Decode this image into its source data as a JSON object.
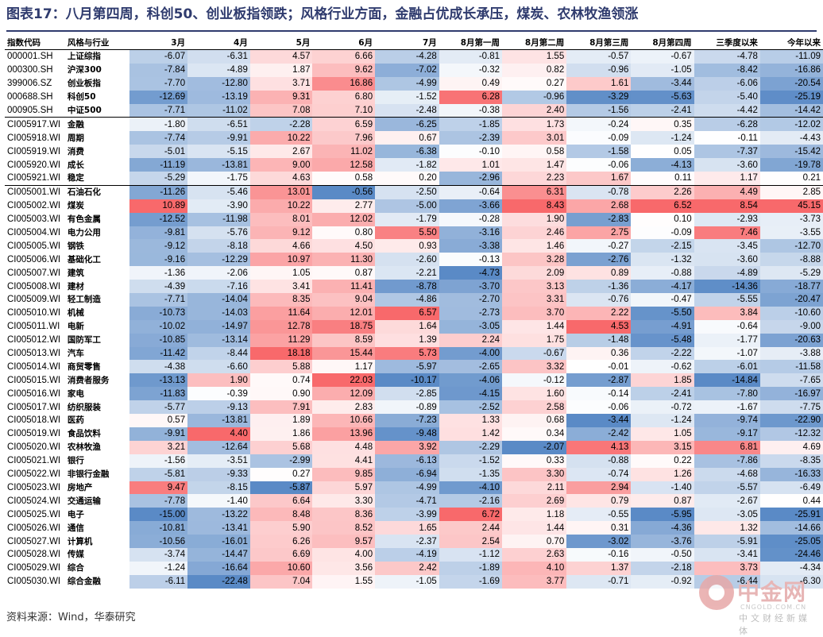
{
  "title": "图表17：八月第四周，科创50、创业板指领跌；风格行业方面，金融占优成长承压，煤炭、农林牧渔领涨",
  "source": "资料来源：Wind，华泰研究",
  "watermark": {
    "main": "中金网",
    "sub": "CNGOLD.COM.CN",
    "tag": "中文财经新媒体"
  },
  "table": {
    "headers": [
      "指数代码",
      "风格与行业",
      "3月",
      "4月",
      "5月",
      "6月",
      "7月",
      "8月第一周",
      "8月第二周",
      "8月第三周",
      "8月第四周",
      "三季度以来",
      "今年以来"
    ],
    "separator_after_rows": [
      4,
      9
    ],
    "rows": [
      [
        "000001.SH",
        "上证综指",
        -6.07,
        -6.31,
        4.57,
        6.66,
        -4.28,
        -0.81,
        1.55,
        -0.57,
        -0.67,
        -4.78,
        -11.09
      ],
      [
        "000300.SH",
        "沪深300",
        -7.84,
        -4.89,
        1.87,
        9.62,
        -7.02,
        -0.32,
        0.82,
        -0.96,
        -1.05,
        -8.42,
        -16.86
      ],
      [
        "399006.SZ",
        "创业板指",
        -7.7,
        -12.8,
        3.71,
        16.86,
        -4.99,
        0.49,
        0.27,
        1.61,
        -3.44,
        -6.06,
        -20.54
      ],
      [
        "000688.SH",
        "科创50",
        -12.69,
        -13.19,
        9.31,
        6.8,
        -1.52,
        6.28,
        -0.96,
        -3.29,
        -5.63,
        -5.4,
        -25.19
      ],
      [
        "000905.SH",
        "中证500",
        -7.71,
        -11.02,
        7.08,
        7.1,
        -2.48,
        -0.38,
        2.4,
        -1.56,
        -2.41,
        -4.42,
        -14.42
      ],
      [
        "CI005917.WI",
        "金融",
        -1.8,
        -6.51,
        -2.28,
        6.59,
        -6.25,
        -1.85,
        1.73,
        -0.24,
        0.35,
        -6.28,
        -12.02
      ],
      [
        "CI005918.WI",
        "周期",
        -7.74,
        -9.91,
        10.22,
        7.96,
        0.67,
        -2.39,
        3.01,
        -0.09,
        -1.24,
        -0.11,
        -4.43
      ],
      [
        "CI005919.WI",
        "消费",
        -5.01,
        -5.15,
        2.67,
        11.02,
        -6.38,
        -0.1,
        0.58,
        -1.58,
        0.05,
        -7.37,
        -15.42
      ],
      [
        "CI005920.WI",
        "成长",
        -11.19,
        -13.81,
        9.0,
        12.58,
        -1.82,
        1.01,
        1.47,
        -0.06,
        -4.13,
        -3.6,
        -19.78
      ],
      [
        "CI005921.WI",
        "稳定",
        -5.29,
        -1.75,
        4.63,
        0.58,
        0.2,
        -2.96,
        2.23,
        1.67,
        0.11,
        1.17,
        0.21
      ],
      [
        "CI005001.WI",
        "石油石化",
        -11.26,
        -5.46,
        13.01,
        -0.56,
        -2.5,
        -0.64,
        6.31,
        -0.78,
        2.26,
        4.49,
        2.85
      ],
      [
        "CI005002.WI",
        "煤炭",
        10.89,
        -3.9,
        10.22,
        2.77,
        -5.0,
        -3.66,
        8.43,
        2.68,
        6.52,
        8.54,
        45.15
      ],
      [
        "CI005003.WI",
        "有色金属",
        -12.52,
        -11.98,
        8.01,
        12.02,
        -1.79,
        -0.28,
        1.9,
        -2.83,
        0.1,
        -2.93,
        -3.73
      ],
      [
        "CI005004.WI",
        "电力公用",
        -9.81,
        -5.76,
        9.12,
        0.8,
        5.5,
        -3.16,
        2.46,
        2.75,
        -0.09,
        7.46,
        -3.55
      ],
      [
        "CI005005.WI",
        "钢铁",
        -9.12,
        -8.18,
        4.66,
        4.5,
        0.93,
        -3.38,
        1.46,
        -0.27,
        -2.15,
        -3.45,
        -12.7
      ],
      [
        "CI005006.WI",
        "基础化工",
        -9.16,
        -12.29,
        10.97,
        11.3,
        -2.6,
        -0.13,
        3.28,
        -2.76,
        -1.32,
        -3.6,
        -8.88
      ],
      [
        "CI005007.WI",
        "建筑",
        -1.36,
        -2.06,
        1.05,
        0.87,
        -2.21,
        -4.73,
        2.09,
        0.89,
        -0.88,
        -4.89,
        -5.29
      ],
      [
        "CI005008.WI",
        "建材",
        -4.39,
        -7.16,
        3.41,
        11.41,
        -8.78,
        -3.7,
        3.13,
        -1.36,
        -4.17,
        -14.36,
        -18.77
      ],
      [
        "CI005009.WI",
        "轻工制造",
        -7.71,
        -14.04,
        8.35,
        9.04,
        -4.86,
        -2.7,
        3.31,
        -0.76,
        -0.47,
        -5.55,
        -20.47
      ],
      [
        "CI005010.WI",
        "机械",
        -10.73,
        -14.03,
        11.64,
        12.01,
        6.57,
        -2.73,
        3.7,
        2.22,
        -5.5,
        3.84,
        -10.6
      ],
      [
        "CI005011.WI",
        "电新",
        -10.02,
        -14.97,
        12.78,
        18.75,
        1.64,
        -3.05,
        1.44,
        4.53,
        -4.91,
        -0.64,
        -9.0
      ],
      [
        "CI005012.WI",
        "国防军工",
        -10.85,
        -13.14,
        11.29,
        8.59,
        1.39,
        2.24,
        1.75,
        -1.48,
        -5.48,
        -1.77,
        -20.63
      ],
      [
        "CI005013.WI",
        "汽车",
        -11.42,
        -8.44,
        18.18,
        15.44,
        5.73,
        -4.0,
        -0.67,
        0.36,
        -2.22,
        -1.07,
        -3.88
      ],
      [
        "CI005014.WI",
        "商贸零售",
        -4.38,
        -6.6,
        5.88,
        1.17,
        -5.97,
        -2.65,
        3.32,
        -0.01,
        -0.62,
        -6.01,
        -11.58
      ],
      [
        "CI005015.WI",
        "消费者服务",
        -13.13,
        1.9,
        0.74,
        22.03,
        -10.17,
        -4.06,
        -0.12,
        -2.87,
        1.85,
        -14.84,
        -7.65
      ],
      [
        "CI005016.WI",
        "家电",
        -11.83,
        -0.39,
        0.9,
        12.09,
        -2.85,
        -4.15,
        1.6,
        -0.14,
        -2.41,
        -7.8,
        -16.97
      ],
      [
        "CI005017.WI",
        "纺织服装",
        -5.77,
        -9.13,
        7.91,
        2.83,
        -0.89,
        -2.52,
        2.58,
        -0.06,
        -0.72,
        -1.67,
        -7.75
      ],
      [
        "CI005018.WI",
        "医药",
        0.57,
        -13.81,
        1.89,
        10.66,
        -7.23,
        1.33,
        0.68,
        -3.44,
        -1.24,
        -9.74,
        -22.9
      ],
      [
        "CI005019.WI",
        "食品饮料",
        -9.91,
        4.4,
        1.86,
        13.96,
        -9.48,
        1.42,
        0.34,
        -2.42,
        1.05,
        -9.17,
        -12.32
      ],
      [
        "CI005020.WI",
        "农林牧渔",
        3.21,
        -12.64,
        5.68,
        4.48,
        3.92,
        -2.29,
        -2.07,
        4.13,
        3.15,
        6.81,
        4.69
      ],
      [
        "CI005021.WI",
        "银行",
        -1.56,
        -3.51,
        -2.99,
        4.41,
        -6.13,
        -1.52,
        0.33,
        -0.88,
        0.22,
        -7.86,
        -8.35
      ],
      [
        "CI005022.WI",
        "非银行金融",
        -5.81,
        -9.33,
        0.27,
        9.85,
        -6.94,
        -1.35,
        3.3,
        -0.74,
        1.26,
        -4.68,
        -16.33
      ],
      [
        "CI005023.WI",
        "房地产",
        9.47,
        -8.15,
        -5.87,
        5.97,
        -4.99,
        -4.1,
        2.11,
        2.94,
        -1.4,
        -5.57,
        -6.49
      ],
      [
        "CI005024.WI",
        "交通运输",
        -7.78,
        -1.4,
        6.64,
        3.3,
        -4.71,
        -2.16,
        2.69,
        0.79,
        0.87,
        -2.67,
        0.44
      ],
      [
        "CI005025.WI",
        "电子",
        -15.0,
        -13.22,
        8.48,
        8.36,
        -3.99,
        6.72,
        1.18,
        -0.55,
        -5.95,
        -3.05,
        -25.91
      ],
      [
        "CI005026.WI",
        "通信",
        -10.81,
        -13.41,
        5.9,
        8.52,
        1.65,
        2.44,
        1.44,
        0.31,
        -4.36,
        1.32,
        -14.66
      ],
      [
        "CI005027.WI",
        "计算机",
        -10.56,
        -16.01,
        6.26,
        9.57,
        -2.37,
        2.54,
        0.7,
        -3.02,
        -3.76,
        -5.91,
        -25.05
      ],
      [
        "CI005028.WI",
        "传媒",
        -3.74,
        -14.47,
        6.69,
        4.0,
        -4.19,
        -1.12,
        2.63,
        -0.16,
        -0.5,
        -3.41,
        -24.46
      ],
      [
        "CI005029.WI",
        "综合",
        -1.24,
        -16.64,
        10.6,
        3.56,
        2.42,
        -1.89,
        4.1,
        1.37,
        -2.18,
        3.73,
        -4.34
      ],
      [
        "CI005030.WI",
        "综合金融",
        -6.11,
        -22.48,
        7.04,
        1.55,
        -1.05,
        -1.69,
        3.77,
        -0.71,
        -0.92,
        -6.44,
        -6.3
      ]
    ]
  },
  "colors": {
    "title": "#2f3b6e",
    "positive": "#f8696b",
    "negative": "#5a8ac6",
    "neutral": "#ffffff"
  }
}
